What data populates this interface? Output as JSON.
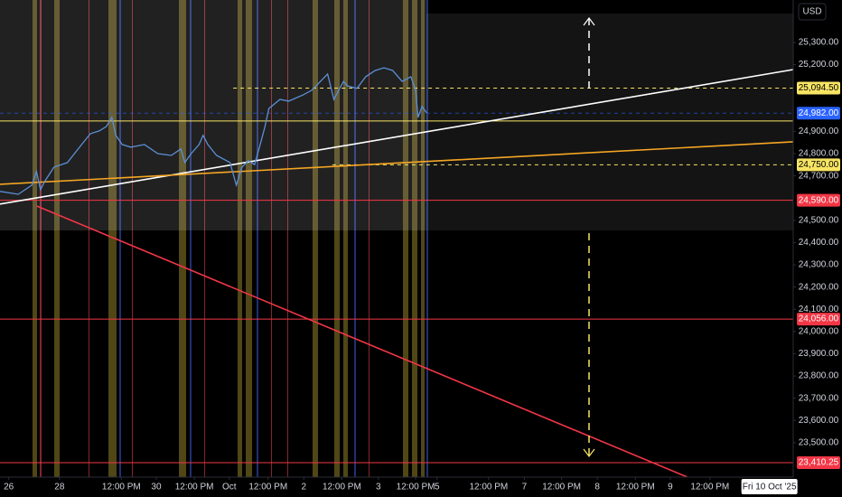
{
  "chart_data": {
    "type": "line",
    "axis_title": "USD",
    "ylim": [
      23345,
      25491
    ],
    "xlim": [
      0,
      100
    ],
    "yticks": [
      {
        "value": 25300,
        "label": "25,300.00"
      },
      {
        "value": 25200,
        "label": "25,200.00"
      },
      {
        "value": 24900,
        "label": "24,900.00"
      },
      {
        "value": 24800,
        "label": "24,800.00"
      },
      {
        "value": 24700,
        "label": "24,700.00"
      },
      {
        "value": 24500,
        "label": "24,500.00"
      },
      {
        "value": 24400,
        "label": "24,400.00"
      },
      {
        "value": 24300,
        "label": "24,300.00"
      },
      {
        "value": 24200,
        "label": "24,200.00"
      },
      {
        "value": 24100,
        "label": "24,100.00"
      },
      {
        "value": 24000,
        "label": "24,000.00"
      },
      {
        "value": 23900,
        "label": "23,900.00"
      },
      {
        "value": 23800,
        "label": "23,800.00"
      },
      {
        "value": 23700,
        "label": "23,700.00"
      },
      {
        "value": 23600,
        "label": "23,600.00"
      },
      {
        "value": 23500,
        "label": "23,500.00"
      }
    ],
    "xticks": [
      {
        "value": 1.1,
        "label": "26"
      },
      {
        "value": 7.5,
        "label": "28"
      },
      {
        "value": 15.3,
        "label": "12:00 PM"
      },
      {
        "value": 19.7,
        "label": "30"
      },
      {
        "value": 24.5,
        "label": "12:00 PM"
      },
      {
        "value": 28.9,
        "label": "Oct"
      },
      {
        "value": 33.8,
        "label": "12:00 PM"
      },
      {
        "value": 38.3,
        "label": "2"
      },
      {
        "value": 43.1,
        "label": "12:00 PM"
      },
      {
        "value": 47.7,
        "label": "3"
      },
      {
        "value": 52.4,
        "label": "12:00 PM"
      },
      {
        "value": 55.1,
        "label": "5"
      },
      {
        "value": 61.6,
        "label": "12:00 PM"
      },
      {
        "value": 66.1,
        "label": "7"
      },
      {
        "value": 70.8,
        "label": "12:00 PM"
      },
      {
        "value": 75.3,
        "label": "8"
      },
      {
        "value": 80.1,
        "label": "12:00 PM"
      },
      {
        "value": 84.5,
        "label": "9"
      },
      {
        "value": 89.5,
        "label": "12:00 PM"
      }
    ],
    "cursor_label": {
      "value": 97,
      "label": "Fri 10 Oct '25"
    },
    "series": [
      {
        "color": "#5b8fd6",
        "x": [
          0,
          2.3,
          4.0,
          4.6,
          5.1,
          5.7,
          6.8,
          8.5,
          10.3,
          11.4,
          12.5,
          13.4,
          14.1,
          14.6,
          15.4,
          16.5,
          18.2,
          19.9,
          21.6,
          22.8,
          23.3,
          24.1,
          25.1,
          25.6,
          26.2,
          27.3,
          29.0,
          29.8,
          30.5,
          31.3,
          32.1,
          32.8,
          33.4,
          33.9,
          35.3,
          36.4,
          38.2,
          39.3,
          40.4,
          41.3,
          42.1,
          42.7,
          43.3,
          43.8,
          45.0,
          46.1,
          47.3,
          48.4,
          49.5,
          50.7,
          51.8,
          52.4,
          52.7,
          53.2,
          53.8
        ],
        "values": [
          24630,
          24617,
          24658,
          24719,
          24638,
          24678,
          24739,
          24760,
          24841,
          24890,
          24902,
          24922,
          24963,
          24882,
          24841,
          24829,
          24841,
          24800,
          24792,
          24821,
          24760,
          24800,
          24841,
          24882,
          24841,
          24792,
          24760,
          24658,
          24739,
          24768,
          24751,
          24841,
          24922,
          25003,
          25044,
          25036,
          25064,
          25085,
          25125,
          25158,
          25044,
          25085,
          25125,
          25105,
          25093,
          25146,
          25174,
          25186,
          25174,
          25125,
          25146,
          25085,
          24963,
          25012,
          24983
        ]
      }
    ],
    "trend_lines": [
      {
        "color": "#ffffff",
        "x": [
          0,
          100
        ],
        "values": [
          24573,
          25178
        ]
      },
      {
        "color": "#f5a623",
        "x": [
          0,
          100
        ],
        "values": [
          24662,
          24853
        ]
      },
      {
        "color": "#f23645",
        "x": [
          4.6,
          86.6
        ],
        "values": [
          24565,
          23346
        ]
      }
    ],
    "levels": [
      {
        "value": 25094.5,
        "label": "25,094.50",
        "color": "#f7e463",
        "text_color": "#000000",
        "dashed": true,
        "from": 29.4
      },
      {
        "value": 24947,
        "color": "#f7e463",
        "dashed": false,
        "from": 0
      },
      {
        "value": 24982,
        "label": "24,982.00",
        "color": "#2962ff",
        "text_color": "#ffffff",
        "dashed": true,
        "from": 0
      },
      {
        "value": 24750,
        "label": "24,750.00",
        "color": "#f7e463",
        "text_color": "#000000",
        "dashed": true,
        "from": 41.9
      },
      {
        "value": 24590,
        "label": "24,590.00",
        "color": "#f23645",
        "text_color": "#ffffff",
        "dashed": false,
        "from": 0
      },
      {
        "value": 24056,
        "label": "24,056.00",
        "color": "#f23645",
        "text_color": "#ffffff",
        "dashed": false,
        "from": 0
      },
      {
        "value": 23410.25,
        "label": "23,410.25",
        "color": "#f23645",
        "text_color": "#ffffff",
        "dashed": false,
        "from": 0
      }
    ]
  }
}
